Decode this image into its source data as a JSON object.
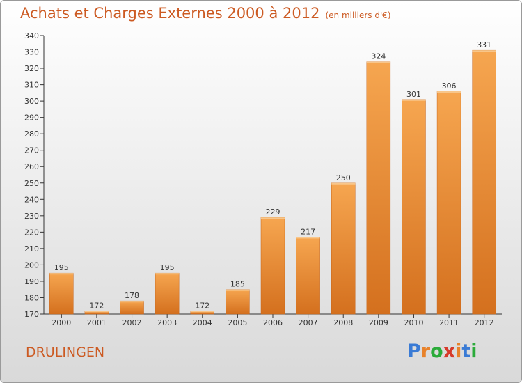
{
  "header": {
    "title": "Achats et Charges Externes 2000 à 2012",
    "subtitle": "(en milliers d'€)"
  },
  "footer": {
    "commune": "DRULINGEN",
    "logo_letters": [
      "P",
      "r",
      "o",
      "x",
      "i",
      "t",
      "i"
    ]
  },
  "colors": {
    "title": "#cc5a22",
    "bar_light": "#f6a650",
    "bar_dark": "#d4701e",
    "logo": [
      "#3a7bd5",
      "#e8822a",
      "#2bab3a",
      "#d63a2a",
      "#e8822a",
      "#3a7bd5",
      "#2bab3a"
    ]
  },
  "chart_data": {
    "type": "bar",
    "title": "Achats et Charges Externes 2000 à 2012",
    "subtitle": "(en milliers d'€)",
    "categories": [
      "2000",
      "2001",
      "2002",
      "2003",
      "2004",
      "2005",
      "2006",
      "2007",
      "2008",
      "2009",
      "2010",
      "2011",
      "2012"
    ],
    "values": [
      195,
      172,
      178,
      195,
      172,
      185,
      229,
      217,
      250,
      324,
      301,
      306,
      331
    ],
    "ylim": [
      170,
      340
    ],
    "ystep": 10,
    "grid": false
  }
}
